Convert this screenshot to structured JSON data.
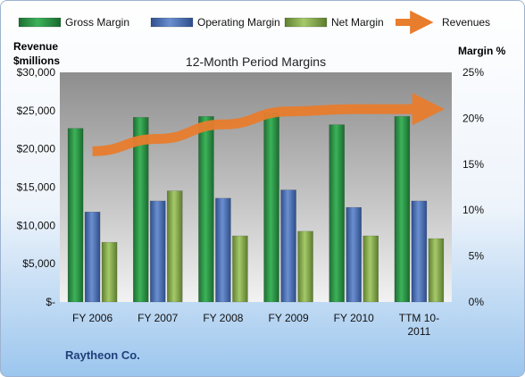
{
  "chart_data": {
    "type": "bar",
    "title": "12-Month Period Margins",
    "company": "Raytheon Co.",
    "left_axis_label_line1": "Revenue",
    "left_axis_label_line2": "$millions",
    "right_axis_label": "Margin %",
    "categories": [
      "FY 2006",
      "FY 2007",
      "FY 2008",
      "FY 2009",
      "FY 2010",
      "TTM 10-2011"
    ],
    "category_label_lines": [
      [
        "FY 2006"
      ],
      [
        "FY 2007"
      ],
      [
        "FY 2008"
      ],
      [
        "FY 2009"
      ],
      [
        "FY 2010"
      ],
      [
        "TTM 10-",
        "2011"
      ]
    ],
    "left_ylim": [
      0,
      30000
    ],
    "left_ticks": [
      0,
      5000,
      10000,
      15000,
      20000,
      25000,
      30000
    ],
    "left_tick_labels": [
      "$-",
      "$5,000",
      "$10,000",
      "$15,000",
      "$20,000",
      "$25,000",
      "$30,000"
    ],
    "right_ylim": [
      0,
      25
    ],
    "right_ticks": [
      0,
      5,
      10,
      15,
      20,
      25
    ],
    "right_tick_labels": [
      "0%",
      "5%",
      "10%",
      "15%",
      "20%",
      "25%"
    ],
    "grid": false,
    "legend_position": "top",
    "series": [
      {
        "name": "Gross Margin",
        "axis": "right",
        "kind": "bar",
        "color": "#2e9c48",
        "values": [
          18.9,
          20.1,
          20.2,
          20.6,
          19.3,
          20.2
        ]
      },
      {
        "name": "Operating Margin",
        "axis": "right",
        "kind": "bar",
        "color": "#4d74b8",
        "values": [
          9.8,
          11.0,
          11.3,
          12.2,
          10.3,
          11.0
        ]
      },
      {
        "name": "Net Margin",
        "axis": "right",
        "kind": "bar",
        "color": "#8ab04e",
        "values": [
          6.5,
          12.1,
          7.2,
          7.7,
          7.2,
          6.9
        ]
      },
      {
        "name": "Revenues",
        "axis": "left",
        "kind": "line",
        "color": "#e87d2e",
        "values": [
          19700,
          21300,
          23200,
          24900,
          25200,
          25200
        ]
      }
    ]
  }
}
